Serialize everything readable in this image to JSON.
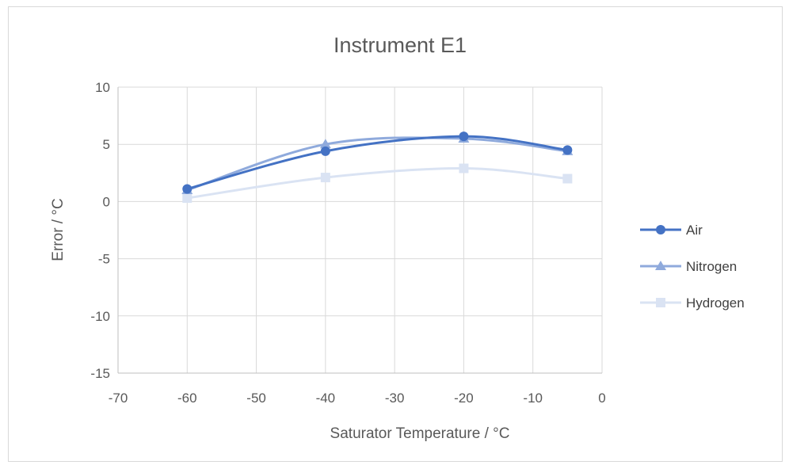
{
  "chart_data": {
    "type": "line",
    "title": "Instrument E1",
    "xlabel": "Saturator Temperature / °C",
    "ylabel": "Error / °C",
    "xlim": [
      -70,
      0
    ],
    "ylim": [
      -15,
      10
    ],
    "xticks": [
      -70,
      -60,
      -50,
      -40,
      -30,
      -20,
      -10,
      0
    ],
    "yticks": [
      10,
      5,
      0,
      -5,
      -10,
      -15
    ],
    "grid": true,
    "smooth": true,
    "legend_position": "right",
    "x": [
      -60,
      -40,
      -20,
      -5
    ],
    "series": [
      {
        "name": "Air",
        "values": [
          1.1,
          4.4,
          5.7,
          4.5
        ],
        "color": "#4472C4",
        "marker": "circle"
      },
      {
        "name": "Nitrogen",
        "values": [
          1.0,
          5.0,
          5.5,
          4.4
        ],
        "color": "#8FAADC",
        "marker": "triangle"
      },
      {
        "name": "Hydrogen",
        "values": [
          0.3,
          2.1,
          2.9,
          2.0
        ],
        "color": "#DAE3F3",
        "marker": "square"
      }
    ]
  }
}
